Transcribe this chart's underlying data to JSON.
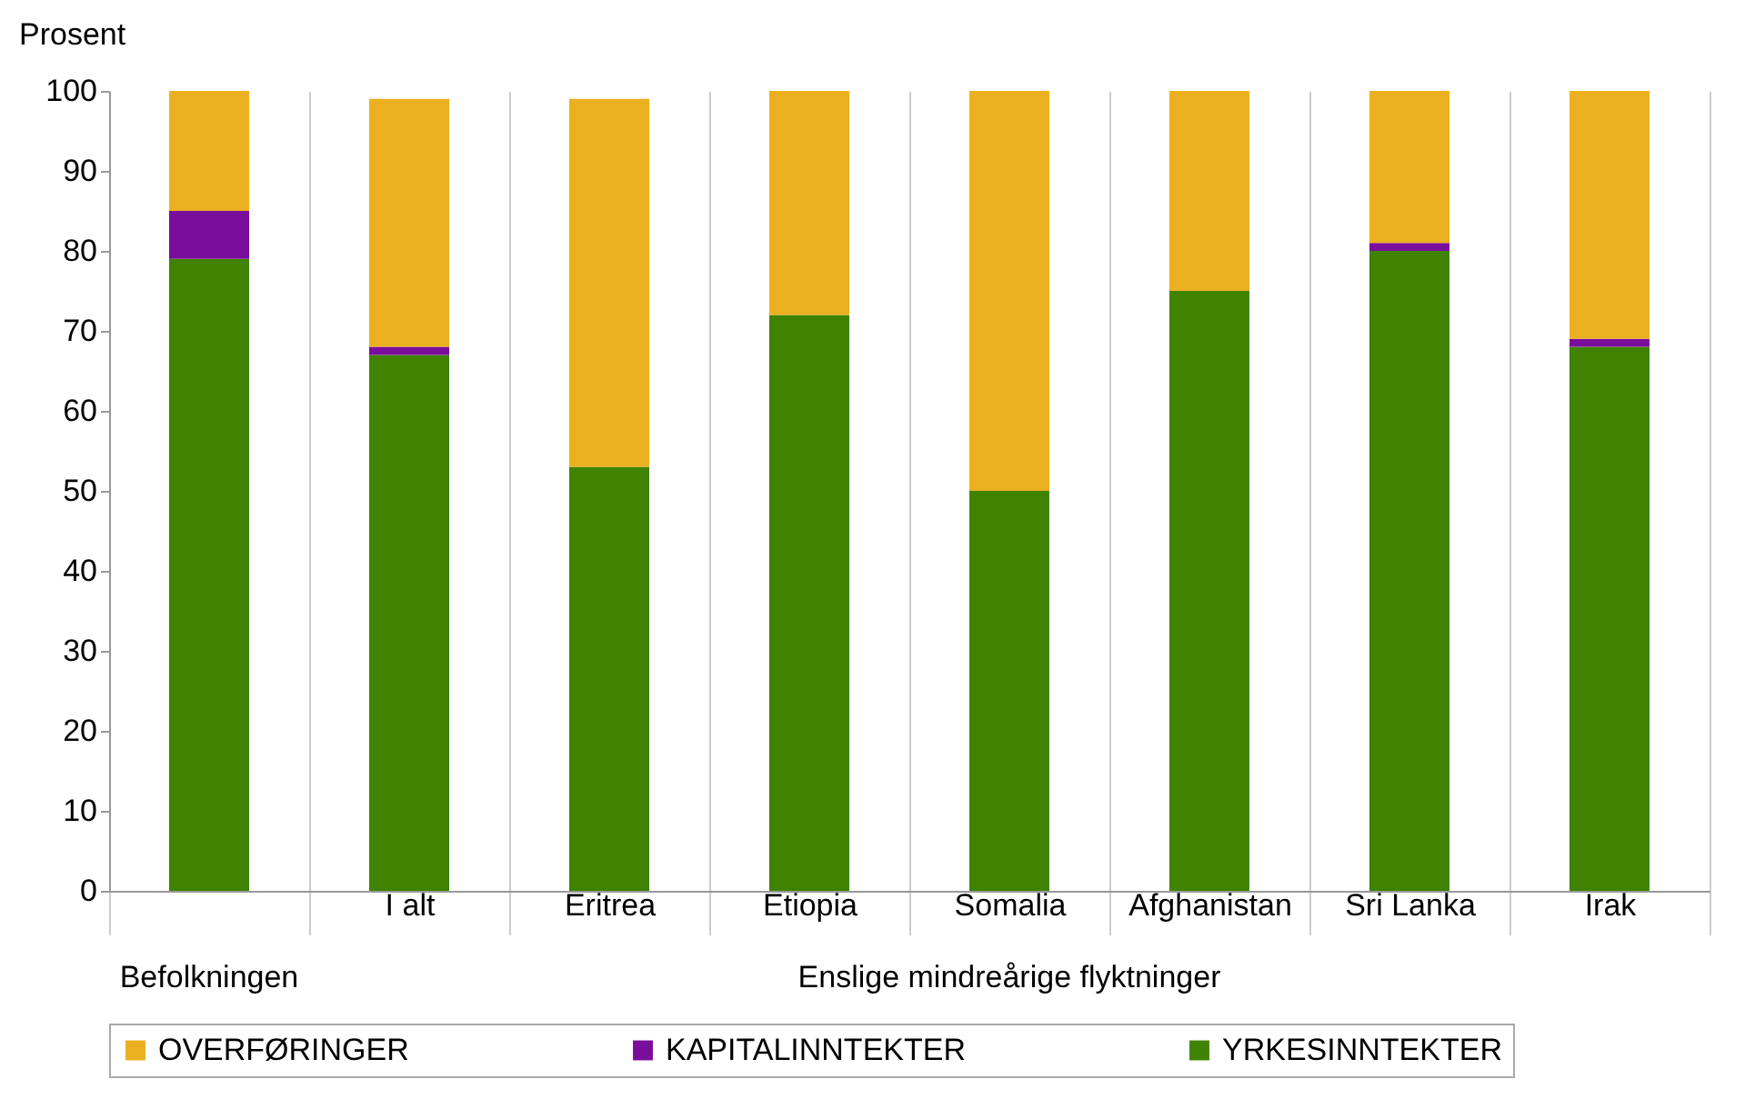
{
  "chart_data": {
    "type": "bar",
    "stacked": true,
    "ylabel": "Prosent",
    "categories": [
      null,
      "I alt",
      "Eritrea",
      "Etiopia",
      "Somalia",
      "Afghanistan",
      "Sri Lanka",
      "Irak"
    ],
    "series": [
      {
        "name": "YRKESINNTEKTER",
        "color": "#3f8300",
        "values": [
          79,
          67,
          53,
          72,
          50,
          75,
          80,
          68
        ]
      },
      {
        "name": "KAPITALINNTEKTER",
        "color": "#7a0e9c",
        "values": [
          6,
          1,
          0,
          0,
          0,
          0,
          1,
          1
        ]
      },
      {
        "name": "OVERFØRINGER",
        "color": "#ebb020",
        "values": [
          15,
          31,
          46,
          28,
          50,
          25,
          19,
          31
        ]
      }
    ],
    "ylim": [
      0,
      100
    ],
    "yticks": [
      0,
      10,
      20,
      30,
      40,
      50,
      60,
      70,
      80,
      90,
      100
    ],
    "grid": "x",
    "legend": "bottom",
    "annotations": [
      "Befolkningen",
      "Enslige mindreårige flyktninger"
    ]
  }
}
